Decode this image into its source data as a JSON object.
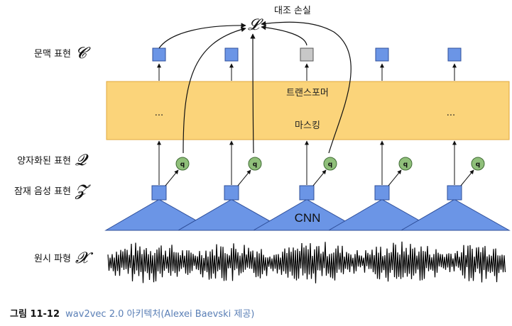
{
  "diagram": {
    "loss_title": "대조 손실",
    "loss_symbol": "𝓛",
    "rows": {
      "context": {
        "label": "문맥 표현",
        "symbol": "𝓒"
      },
      "quantized": {
        "label": "양자화된 표현",
        "symbol": "𝓠"
      },
      "latent": {
        "label": "잠재 음성 표현",
        "symbol": "𝓩"
      },
      "raw": {
        "label": "원시 파형",
        "symbol": "𝓧"
      }
    },
    "transformer_label": "트랜스포머",
    "masking_label": "마스킹",
    "ellipsis": "...",
    "cnn_label": "CNN",
    "q_label": "q"
  },
  "colors": {
    "transformer_fill": "#fbd47a",
    "transformer_stroke": "#e0a93c",
    "blue": "#6b95e6",
    "blue_stroke": "#2f4f9a",
    "gray": "#c8c8c8",
    "q_fill": "#8fbf7a",
    "q_stroke": "#3f6b34",
    "caption_text": "#5a7fb6"
  },
  "caption": {
    "figure_label": "그림 11-12",
    "text": "wav2vec 2.0 아키텍처(Alexei Baevski 제공)"
  }
}
